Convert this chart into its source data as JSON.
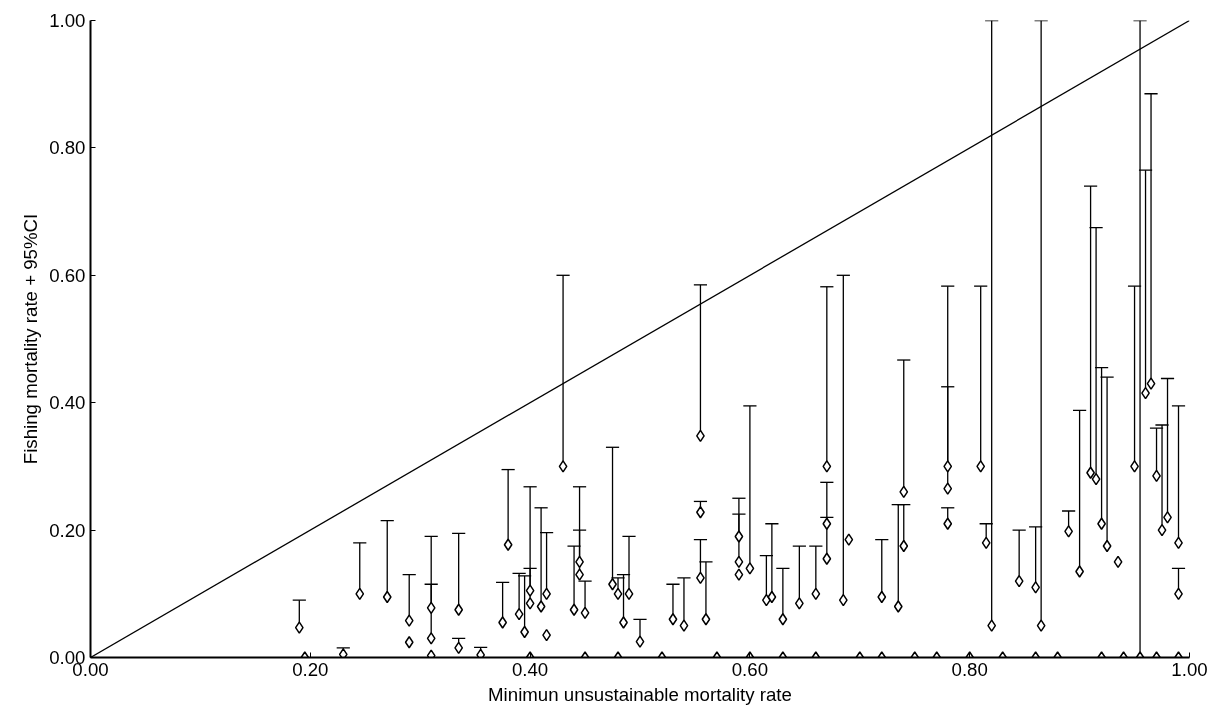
{
  "chart_data": {
    "type": "scatter",
    "xlabel": "Minimun unsustainable mortality rate",
    "ylabel": "Fishing mortality rate + 95%CI",
    "xlim": [
      0,
      1
    ],
    "ylim": [
      0,
      1
    ],
    "xticks": [
      {
        "value": 0,
        "label": "0.00"
      },
      {
        "value": 0.2,
        "label": "0.20"
      },
      {
        "value": 0.4,
        "label": "0.40"
      },
      {
        "value": 0.6,
        "label": "0.60"
      },
      {
        "value": 0.8,
        "label": "0.80"
      },
      {
        "value": 1,
        "label": "1.00"
      }
    ],
    "yticks": [
      {
        "value": 0,
        "label": "0.00"
      },
      {
        "value": 0.2,
        "label": "0.20"
      },
      {
        "value": 0.4,
        "label": "0.40"
      },
      {
        "value": 0.6,
        "label": "0.60"
      },
      {
        "value": 0.8,
        "label": "0.80"
      },
      {
        "value": 1,
        "label": "1.00"
      }
    ],
    "grid": false,
    "marker": "diamond",
    "series": [
      {
        "color": "#000000",
        "x": [
          0.19,
          0.195,
          0.23,
          0.245,
          0.27,
          0.29,
          0.29,
          0.31,
          0.31,
          0.31,
          0.335,
          0.335,
          0.355,
          0.375,
          0.38,
          0.39,
          0.395,
          0.4,
          0.4,
          0.41,
          0.415,
          0.415,
          0.43,
          0.44,
          0.445,
          0.445,
          0.45,
          0.475,
          0.48,
          0.485,
          0.49,
          0.5,
          0.53,
          0.54,
          0.555,
          0.555,
          0.555,
          0.56,
          0.59,
          0.59,
          0.59,
          0.6,
          0.615,
          0.62,
          0.63,
          0.645,
          0.66,
          0.67,
          0.67,
          0.67,
          0.685,
          0.69,
          0.72,
          0.735,
          0.74,
          0.74,
          0.78,
          0.78,
          0.78,
          0.81,
          0.815,
          0.82,
          0.845,
          0.865,
          0.86,
          0.89,
          0.9,
          0.91,
          0.915,
          0.92,
          0.925,
          0.935,
          0.95,
          0.955,
          0.96,
          0.965,
          0.97,
          0.975,
          0.98,
          0.99,
          0.99,
          0.4,
          0.45,
          0.48,
          0.52,
          0.57,
          0.6,
          0.63,
          0.66,
          0.7,
          0.72,
          0.75,
          0.77,
          0.8,
          0.83,
          0.86,
          0.88,
          0.92,
          0.94,
          0.97,
          0.99
        ],
        "values": [
          0.047,
          0,
          0.005,
          0.1,
          0.095,
          0.058,
          0.024,
          0.078,
          0.03,
          0.003,
          0.075,
          0.015,
          0.004,
          0.055,
          0.177,
          0.068,
          0.04,
          0.105,
          0.085,
          0.08,
          0.1,
          0.035,
          0.3,
          0.075,
          0.15,
          0.13,
          0.07,
          0.115,
          0.1,
          0.055,
          0.1,
          0.025,
          0.06,
          0.05,
          0.348,
          0.228,
          0.125,
          0.06,
          0.19,
          0.15,
          0.13,
          0.14,
          0.09,
          0.095,
          0.06,
          0.085,
          0.1,
          0.3,
          0.21,
          0.155,
          0.09,
          0.185,
          0.095,
          0.08,
          0.26,
          0.175,
          0.3,
          0.265,
          0.21,
          0.3,
          0.18,
          0.05,
          0.12,
          0.05,
          0.11,
          0.198,
          0.135,
          0.29,
          0.28,
          0.21,
          0.175,
          0.15,
          0.3,
          0,
          0.415,
          0.43,
          0.285,
          0.2,
          0.22,
          0.18,
          0.1,
          0,
          0,
          0,
          0,
          0,
          0,
          0,
          0,
          0,
          0,
          0,
          0,
          0,
          0,
          0,
          0,
          0,
          0,
          0,
          0
        ],
        "errors": [
          [
            0.047,
            0.09
          ],
          null,
          [
            0.005,
            0.015
          ],
          [
            0.1,
            0.18
          ],
          [
            0.095,
            0.215
          ],
          [
            0.058,
            0.13
          ],
          null,
          [
            0.078,
            0.19
          ],
          [
            0.03,
            0.115
          ],
          null,
          [
            0.075,
            0.195
          ],
          [
            0.015,
            0.03
          ],
          [
            0.004,
            0.016
          ],
          [
            0.055,
            0.118
          ],
          [
            0.177,
            0.295
          ],
          [
            0.068,
            0.132
          ],
          [
            0.04,
            0.128
          ],
          [
            0.105,
            0.268
          ],
          [
            0.085,
            0.14
          ],
          [
            0.08,
            0.235
          ],
          [
            0.1,
            0.196
          ],
          null,
          [
            0.3,
            0.6
          ],
          [
            0.075,
            0.175
          ],
          [
            0.15,
            0.268
          ],
          [
            0.13,
            0.2
          ],
          [
            0.07,
            0.12
          ],
          [
            0.115,
            0.33
          ],
          [
            0.1,
            0.125
          ],
          [
            0.055,
            0.13
          ],
          [
            0.1,
            0.19
          ],
          [
            0.025,
            0.06
          ],
          [
            0.06,
            0.115
          ],
          [
            0.05,
            0.125
          ],
          [
            0.348,
            0.585
          ],
          [
            0.228,
            0.245
          ],
          [
            0.125,
            0.185
          ],
          [
            0.06,
            0.15
          ],
          [
            0.19,
            0.25
          ],
          [
            0.15,
            0.225
          ],
          null,
          [
            0.14,
            0.395
          ],
          [
            0.09,
            0.16
          ],
          [
            0.095,
            0.21
          ],
          [
            0.06,
            0.14
          ],
          [
            0.085,
            0.175
          ],
          [
            0.1,
            0.175
          ],
          [
            0.3,
            0.582
          ],
          [
            0.21,
            0.275
          ],
          [
            0.155,
            0.22
          ],
          [
            0.09,
            0.6
          ],
          null,
          [
            0.095,
            0.185
          ],
          [
            0.08,
            0.24
          ],
          [
            0.26,
            0.467
          ],
          [
            0.175,
            0.24
          ],
          [
            0.3,
            0.583
          ],
          [
            0.265,
            0.425
          ],
          [
            0.21,
            0.235
          ],
          [
            0.3,
            0.583
          ],
          [
            0.18,
            0.21
          ],
          [
            0.05,
            1.0
          ],
          [
            0.12,
            0.2
          ],
          [
            0.05,
            1.0
          ],
          [
            0.11,
            0.205
          ],
          [
            0.198,
            0.23
          ],
          [
            0.135,
            0.388
          ],
          [
            0.29,
            0.74
          ],
          [
            0.28,
            0.675
          ],
          [
            0.21,
            0.455
          ],
          [
            0.175,
            0.44
          ],
          null,
          [
            0.3,
            0.583
          ],
          [
            0,
            1.0
          ],
          [
            0.415,
            0.765
          ],
          [
            0.43,
            0.885
          ],
          [
            0.285,
            0.36
          ],
          [
            0.2,
            0.365
          ],
          [
            0.22,
            0.438
          ],
          [
            0.18,
            0.395
          ],
          [
            0.1,
            0.14
          ],
          null,
          null,
          null,
          null,
          null,
          null,
          null,
          null,
          null,
          null,
          null,
          null,
          null,
          null,
          null,
          null,
          null,
          null,
          null,
          null
        ]
      },
      {
        "type": "line",
        "color": "#000000",
        "x": [
          0,
          1
        ],
        "values": [
          0,
          1
        ],
        "marker": "none",
        "line_style": "solid"
      }
    ]
  }
}
